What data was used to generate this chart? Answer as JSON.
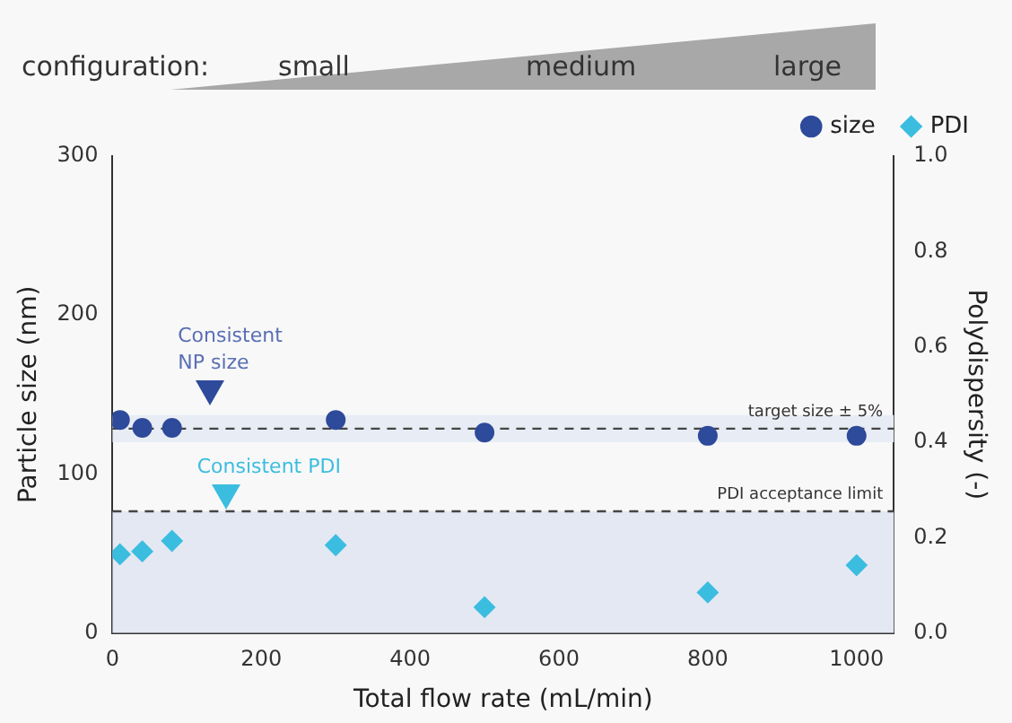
{
  "chart_data": {
    "type": "scatter",
    "xlabel": "Total flow rate (mL/min)",
    "ylabel": "Particle size (nm)",
    "y2label": "Polydispersity (-)",
    "xlim": [
      0,
      1050
    ],
    "xticks": [
      0,
      200,
      400,
      600,
      800,
      1000
    ],
    "ylim": [
      0,
      300
    ],
    "yticks": [
      0,
      100,
      200,
      300
    ],
    "y2lim": [
      0,
      1
    ],
    "y2ticks": [
      {
        "value": 0,
        "label": "0.0"
      },
      {
        "value": 0.2,
        "label": "0.2"
      },
      {
        "value": 0.4,
        "label": "0.4"
      },
      {
        "value": 0.6,
        "label": "0.6"
      },
      {
        "value": 0.8,
        "label": "0.8"
      },
      {
        "value": 1,
        "label": "1.0"
      }
    ],
    "x": [
      10,
      40,
      80,
      300,
      500,
      800,
      1000
    ],
    "series": [
      {
        "name": "size",
        "color": "#2e4a9a",
        "marker": "circle",
        "values": [
          134,
          129,
          129,
          134,
          126,
          124,
          124
        ]
      },
      {
        "name": "PDI",
        "color": "#3bbde0",
        "marker": "diamond",
        "axis": "y2",
        "values": [
          0.165,
          0.171,
          0.193,
          0.184,
          0.054,
          0.085,
          0.142
        ]
      }
    ],
    "ref_lines": [
      {
        "axis": "y",
        "value": 128.5,
        "label": "target size ± 5%",
        "color": "#444444",
        "line_style": "dashed"
      },
      {
        "axis": "y2",
        "value": 0.255,
        "label": "PDI acceptance limit",
        "color": "#444444",
        "line_style": "dashed"
      }
    ],
    "bands": [
      {
        "axis": "y",
        "from": 120,
        "to": 137,
        "color": "#e8edf5"
      },
      {
        "axis": "y2",
        "from": 0,
        "to": 0.255,
        "color": "#e3e8f3"
      }
    ],
    "annotations": [
      "configuration:",
      "small",
      "medium",
      "large",
      "Consistent NP size",
      "Consistent PDI"
    ],
    "legend": "top right",
    "grid": false
  }
}
